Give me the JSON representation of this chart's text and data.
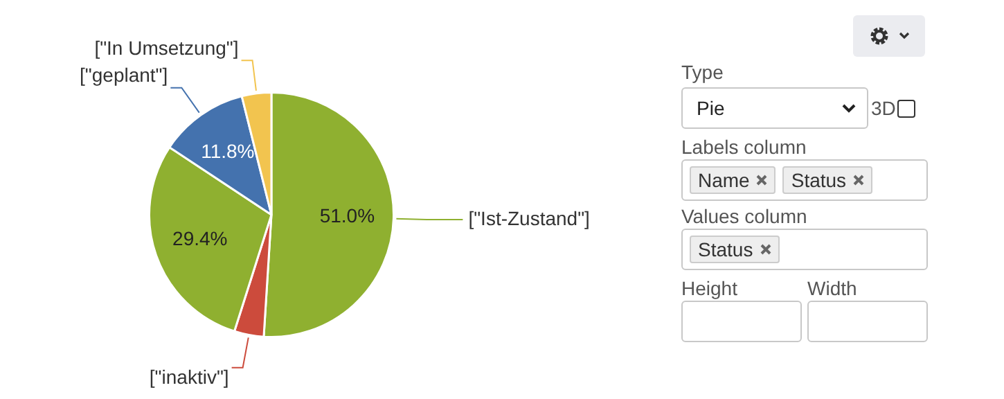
{
  "chart_data": {
    "type": "pie",
    "categories": [
      "[\"Ist-Zustand\"]",
      "[\"inaktiv\"]",
      null,
      "[\"geplant\"]",
      "[\"In Umsetzung\"]"
    ],
    "values": [
      51.0,
      3.9,
      29.4,
      11.8,
      3.9
    ],
    "colors": [
      "#8fb030",
      "#cc4b3c",
      "#8fb030",
      "#4472ae",
      "#f2c44f"
    ],
    "value_labels": [
      "51.0%",
      null,
      "29.4%",
      "11.8%",
      null
    ],
    "legend": false,
    "annotations": [
      "Type",
      "Pie",
      "3D",
      "Labels column",
      "Name",
      "Status",
      "Values column",
      "Status",
      "Height",
      "Width"
    ]
  }
}
